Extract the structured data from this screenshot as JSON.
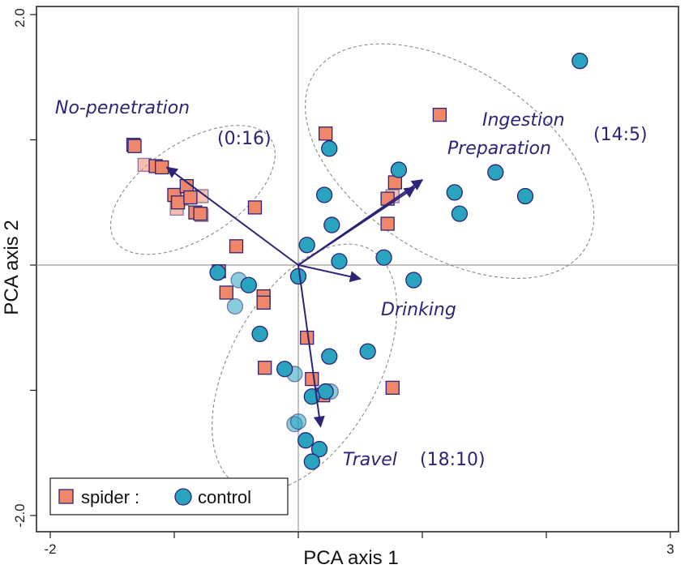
{
  "chart_data": {
    "type": "scatter",
    "xlabel": "PCA axis 1",
    "ylabel": "PCA axis 2",
    "xlim": [
      -2,
      3
    ],
    "ylim": [
      -2,
      2
    ],
    "x_tick_labels": [
      {
        "value": -2,
        "label": "-2"
      },
      {
        "value": 3,
        "label": "3"
      }
    ],
    "y_tick_labels": [
      {
        "value": 2,
        "label": "2.0"
      },
      {
        "value": -2,
        "label": "-2.0"
      }
    ],
    "x_ticks": [
      -2,
      -1,
      0,
      1,
      2,
      3
    ],
    "y_ticks": [
      -2,
      -1,
      0,
      1,
      2
    ],
    "reference_lines": {
      "x": 0,
      "y": 0
    },
    "grid": false,
    "colors": {
      "spider": "#f0866a",
      "control": "#2aa3bf",
      "marker_edge": "#2b2477",
      "vector": "#2b2477",
      "annotation": "#2b2477"
    },
    "legend": {
      "placement": "bottom-left",
      "spider_label": "spider :",
      "control_label": "control"
    },
    "series": [
      {
        "name": "spider",
        "marker": "square",
        "points": [
          {
            "x": -1.33,
            "y": 0.96
          },
          {
            "x": -1.32,
            "y": 0.95
          },
          {
            "x": -1.15,
            "y": 0.79
          },
          {
            "x": -1.1,
            "y": 0.78
          },
          {
            "x": -1.0,
            "y": 0.56
          },
          {
            "x": -0.97,
            "y": 0.5
          },
          {
            "x": -0.9,
            "y": 0.63
          },
          {
            "x": -0.87,
            "y": 0.54
          },
          {
            "x": -0.83,
            "y": 0.42
          },
          {
            "x": -0.79,
            "y": 0.41
          },
          {
            "x": -0.35,
            "y": 0.46
          },
          {
            "x": -0.5,
            "y": 0.15
          },
          {
            "x": -0.64,
            "y": -0.05
          },
          {
            "x": -0.58,
            "y": -0.22
          },
          {
            "x": -0.28,
            "y": -0.25
          },
          {
            "x": -0.28,
            "y": -0.3
          },
          {
            "x": -0.27,
            "y": -0.82
          },
          {
            "x": 0.07,
            "y": -0.58
          },
          {
            "x": 0.11,
            "y": -0.91
          },
          {
            "x": 0.2,
            "y": -1.04
          },
          {
            "x": 0.22,
            "y": 1.05
          },
          {
            "x": 0.78,
            "y": 0.66
          },
          {
            "x": 0.72,
            "y": 0.53
          },
          {
            "x": 0.72,
            "y": 0.33
          },
          {
            "x": 1.14,
            "y": 1.2
          },
          {
            "x": 0.76,
            "y": -0.98
          }
        ]
      },
      {
        "name": "spider-faded",
        "marker": "square",
        "points": [
          {
            "x": -1.24,
            "y": 0.8
          },
          {
            "x": -0.98,
            "y": 0.45
          },
          {
            "x": -0.94,
            "y": 0.53
          },
          {
            "x": -0.78,
            "y": 0.55
          },
          {
            "x": -0.78,
            "y": 0.4
          },
          {
            "x": -0.28,
            "y": -0.27
          },
          {
            "x": 0.76,
            "y": 0.55
          },
          {
            "x": 0.2,
            "y": -1.03
          }
        ]
      },
      {
        "name": "control",
        "marker": "circle",
        "points": [
          {
            "x": 2.27,
            "y": 1.63
          },
          {
            "x": 1.59,
            "y": 0.74
          },
          {
            "x": 1.83,
            "y": 0.55
          },
          {
            "x": 1.26,
            "y": 0.58
          },
          {
            "x": 1.3,
            "y": 0.41
          },
          {
            "x": 0.81,
            "y": 0.76
          },
          {
            "x": 0.25,
            "y": 0.93
          },
          {
            "x": 0.21,
            "y": 0.56
          },
          {
            "x": 0.27,
            "y": 0.32
          },
          {
            "x": 0.07,
            "y": 0.16
          },
          {
            "x": 0.33,
            "y": 0.03
          },
          {
            "x": 0.69,
            "y": 0.06
          },
          {
            "x": 0.93,
            "y": -0.12
          },
          {
            "x": 0.0,
            "y": -0.09
          },
          {
            "x": -0.65,
            "y": -0.06
          },
          {
            "x": -0.4,
            "y": -0.16
          },
          {
            "x": -0.31,
            "y": -0.55
          },
          {
            "x": -0.11,
            "y": -0.83
          },
          {
            "x": 0.25,
            "y": -0.73
          },
          {
            "x": 0.56,
            "y": -0.69
          },
          {
            "x": 0.22,
            "y": -1.01
          },
          {
            "x": 0.11,
            "y": -1.05
          },
          {
            "x": 0.17,
            "y": -1.47
          },
          {
            "x": 0.11,
            "y": -1.57
          },
          {
            "x": 0.06,
            "y": -1.4
          }
        ]
      },
      {
        "name": "control-faded",
        "marker": "circle",
        "points": [
          {
            "x": -0.48,
            "y": -0.12
          },
          {
            "x": -0.51,
            "y": -0.33
          },
          {
            "x": -0.03,
            "y": -0.87
          },
          {
            "x": 0.26,
            "y": -1.01
          },
          {
            "x": -0.03,
            "y": -1.27
          },
          {
            "x": 0.0,
            "y": -1.25
          }
        ]
      }
    ],
    "vectors": [
      {
        "x": -1.06,
        "y": 0.78
      },
      {
        "x": 1.0,
        "y": 0.68
      },
      {
        "x": 0.94,
        "y": 0.62
      },
      {
        "x": 0.5,
        "y": -0.11
      },
      {
        "x": 0.18,
        "y": -1.29
      }
    ],
    "ellipses": [
      {
        "cx": -0.85,
        "cy": 0.6,
        "rx": 0.75,
        "ry": 0.38,
        "angle": -33
      },
      {
        "cx": 1.22,
        "cy": 0.83,
        "rx": 1.3,
        "ry": 0.74,
        "angle": 33
      },
      {
        "cx": 0.05,
        "cy": -0.82,
        "rx": 0.6,
        "ry": 1.08,
        "angle": 29
      }
    ],
    "annotations": {
      "no_penetration": "No-penetration",
      "no_penetration_ratio": "(0:16)",
      "ingestion": "Ingestion",
      "preparation": "Preparation",
      "ingestion_ratio": "(14:5)",
      "drinking": "Drinking",
      "travel": "Travel",
      "travel_ratio": "(18:10)"
    }
  }
}
